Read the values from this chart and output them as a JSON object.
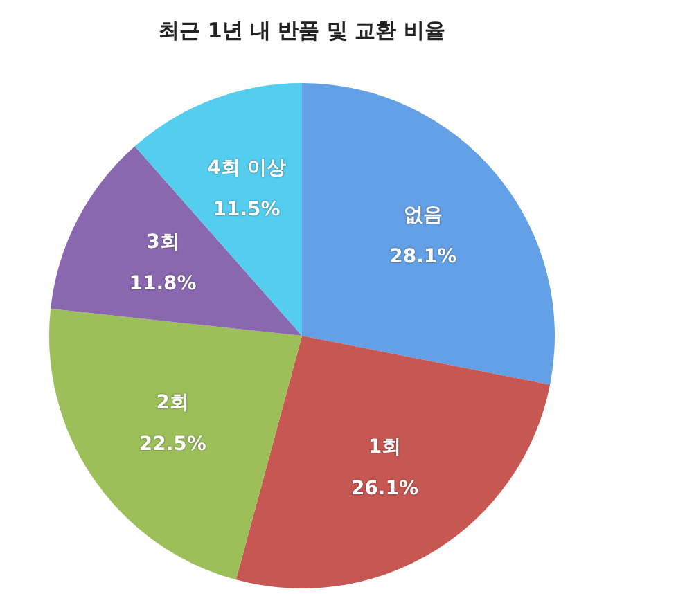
{
  "chart_data": {
    "type": "pie",
    "title": "최근 1년 내 반품 및 교환 비율",
    "categories": [
      "없음",
      "1회",
      "2회",
      "3회",
      "4회 이상"
    ],
    "values": [
      28.1,
      26.1,
      22.5,
      11.8,
      11.5
    ],
    "colors": [
      "#63a0e6",
      "#c65752",
      "#9cbf5a",
      "#8a68b0",
      "#55cdef"
    ],
    "value_labels": [
      "28.1%",
      "26.1%",
      "22.5%",
      "11.8%",
      "11.5%"
    ],
    "legend": false
  }
}
